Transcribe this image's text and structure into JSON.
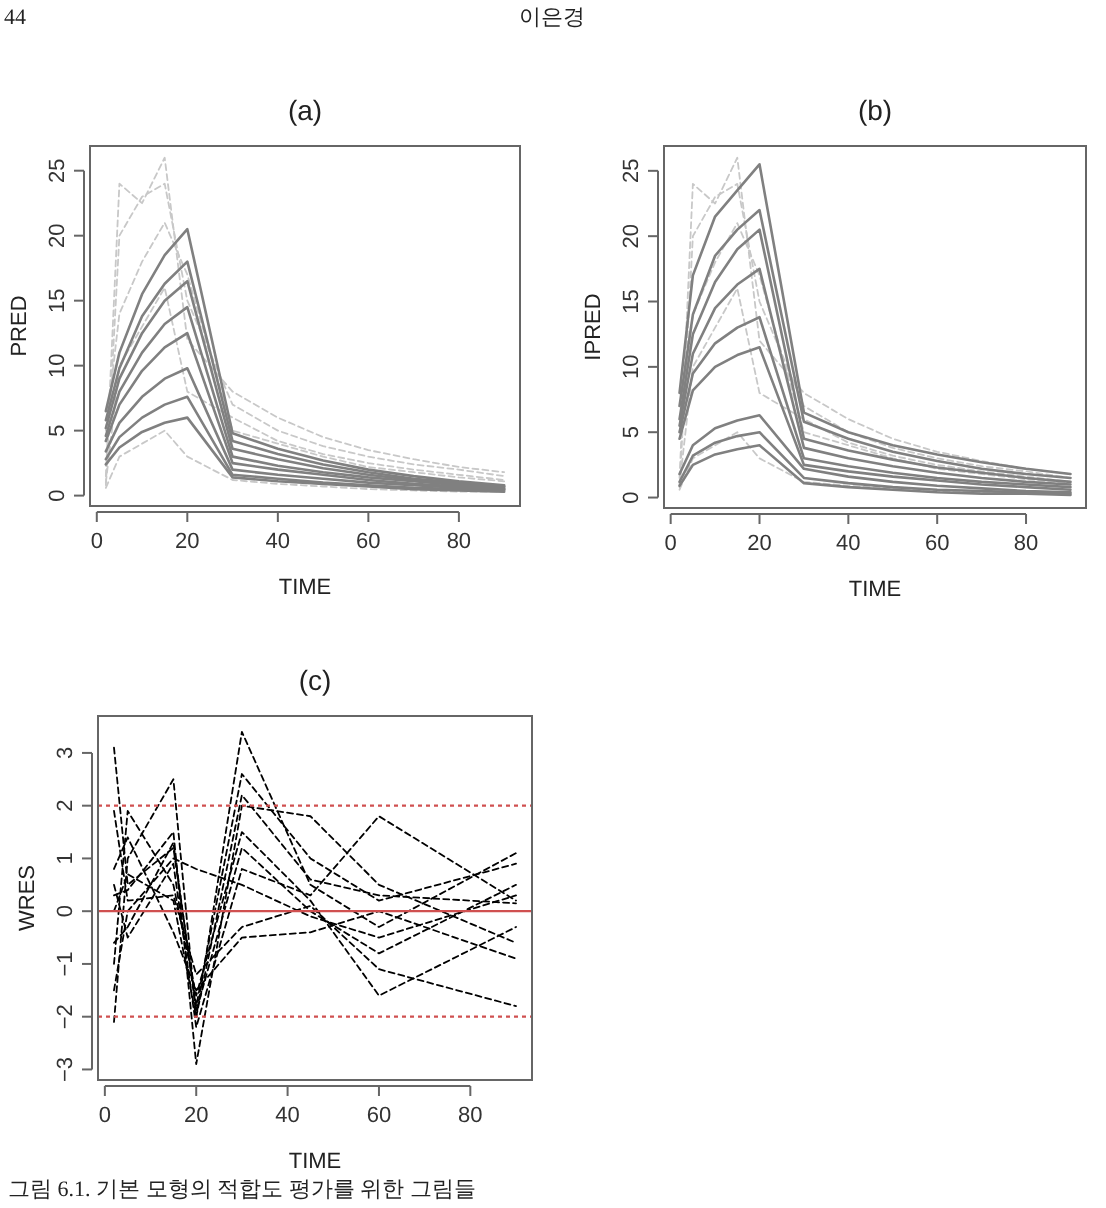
{
  "chart_data": [
    {
      "type": "line",
      "title": "(a)",
      "xlabel": "TIME",
      "ylabel": "PRED",
      "xlim": [
        -1.5,
        93.5
      ],
      "ylim": [
        -0.8,
        26.9
      ],
      "xticks": [
        0,
        20,
        40,
        60,
        80
      ],
      "yticks": [
        0,
        5,
        10,
        15,
        20,
        25
      ],
      "annotations": [
        "44",
        "이은경"
      ],
      "series": [
        {
          "color": "#c8c8c8",
          "line_style": "dashed",
          "x": [
            2,
            5,
            10,
            15,
            20,
            30,
            40,
            50,
            60,
            70,
            80,
            90
          ],
          "values": [
            1.5,
            24,
            22.5,
            26,
            12,
            8,
            6,
            4.5,
            3.5,
            2.8,
            2.2,
            1.8
          ]
        },
        {
          "color": "#c8c8c8",
          "line_style": "dashed",
          "x": [
            2,
            5,
            10,
            15,
            20,
            30,
            40,
            50,
            60,
            70,
            80,
            90
          ],
          "values": [
            0.8,
            20,
            23,
            24,
            15,
            7,
            5,
            3.8,
            3,
            2.4,
            2,
            1.5
          ]
        },
        {
          "color": "#c8c8c8",
          "line_style": "dashed",
          "x": [
            2,
            5,
            10,
            15,
            20,
            30,
            40,
            50,
            60,
            70,
            80,
            90
          ],
          "values": [
            1,
            10,
            13,
            16,
            8,
            6,
            4.2,
            3.2,
            2.5,
            2,
            1.6,
            1.2
          ]
        },
        {
          "color": "#c8c8c8",
          "line_style": "dashed",
          "x": [
            2,
            5,
            10,
            15,
            20,
            30,
            40,
            50,
            60,
            70,
            80,
            90
          ],
          "values": [
            0.6,
            3,
            4,
            5,
            3,
            1.2,
            0.9,
            0.7,
            0.5,
            0.4,
            0.3,
            0.3
          ]
        },
        {
          "color": "#c8c8c8",
          "line_style": "dashed",
          "x": [
            2,
            5,
            10,
            15,
            20,
            30,
            40,
            50,
            60,
            70,
            80,
            90
          ],
          "values": [
            5,
            14,
            18,
            21,
            17,
            5,
            4,
            3,
            2.2,
            1.8,
            1.4,
            1.1
          ]
        },
        {
          "color": "#808080",
          "line_style": "solid",
          "x": [
            2,
            5,
            10,
            15,
            20,
            30,
            40,
            50,
            60,
            70,
            80,
            90
          ],
          "values": [
            6.5,
            11,
            15.5,
            18.5,
            20.5,
            4.8,
            3.6,
            2.7,
            2.0,
            1.5,
            1.1,
            0.8
          ]
        },
        {
          "color": "#808080",
          "line_style": "solid",
          "x": [
            2,
            5,
            10,
            15,
            20,
            30,
            40,
            50,
            60,
            70,
            80,
            90
          ],
          "values": [
            5.8,
            9.8,
            13.8,
            16.3,
            18,
            4.2,
            3.2,
            2.4,
            1.8,
            1.3,
            1.0,
            0.7
          ]
        },
        {
          "color": "#808080",
          "line_style": "solid",
          "x": [
            2,
            5,
            10,
            15,
            20,
            30,
            40,
            50,
            60,
            70,
            80,
            90
          ],
          "values": [
            5.2,
            9,
            12.5,
            15,
            16.5,
            3.6,
            2.8,
            2.1,
            1.6,
            1.2,
            0.9,
            0.7
          ]
        },
        {
          "color": "#808080",
          "line_style": "solid",
          "x": [
            2,
            5,
            10,
            15,
            20,
            30,
            40,
            50,
            60,
            70,
            80,
            90
          ],
          "values": [
            4.6,
            8,
            11,
            13.2,
            14.5,
            3.0,
            2.3,
            1.8,
            1.4,
            1.1,
            0.8,
            0.6
          ]
        },
        {
          "color": "#808080",
          "line_style": "solid",
          "x": [
            2,
            5,
            10,
            15,
            20,
            30,
            40,
            50,
            60,
            70,
            80,
            90
          ],
          "values": [
            4.2,
            7,
            9.6,
            11.4,
            12.5,
            2.5,
            2.0,
            1.6,
            1.2,
            0.9,
            0.7,
            0.5
          ]
        },
        {
          "color": "#808080",
          "line_style": "solid",
          "x": [
            2,
            5,
            10,
            15,
            20,
            30,
            40,
            50,
            60,
            70,
            80,
            90
          ],
          "values": [
            3.4,
            5.6,
            7.6,
            9,
            9.8,
            2.0,
            1.6,
            1.3,
            1.0,
            0.8,
            0.6,
            0.5
          ]
        },
        {
          "color": "#808080",
          "line_style": "solid",
          "x": [
            2,
            5,
            10,
            15,
            20,
            30,
            40,
            50,
            60,
            70,
            80,
            90
          ],
          "values": [
            2.8,
            4.5,
            6,
            7,
            7.6,
            1.6,
            1.3,
            1.0,
            0.8,
            0.6,
            0.5,
            0.4
          ]
        },
        {
          "color": "#808080",
          "line_style": "solid",
          "x": [
            2,
            5,
            10,
            15,
            20,
            30,
            40,
            50,
            60,
            70,
            80,
            90
          ],
          "values": [
            2.4,
            3.7,
            4.9,
            5.6,
            6.0,
            1.4,
            1.1,
            0.9,
            0.7,
            0.5,
            0.4,
            0.3
          ]
        }
      ]
    },
    {
      "type": "line",
      "title": "(b)",
      "xlabel": "TIME",
      "ylabel": "IPRED",
      "xlim": [
        -1.5,
        93.5
      ],
      "ylim": [
        -0.8,
        26.9
      ],
      "xticks": [
        0,
        20,
        40,
        60,
        80
      ],
      "yticks": [
        0,
        5,
        10,
        15,
        20,
        25
      ],
      "series": [
        {
          "color": "#c8c8c8",
          "line_style": "dashed",
          "x": [
            2,
            5,
            10,
            15,
            20,
            30,
            40,
            50,
            60,
            70,
            80,
            90
          ],
          "values": [
            1.5,
            24,
            22.5,
            26,
            12,
            8,
            6,
            4.5,
            3.5,
            2.8,
            2.2,
            1.8
          ]
        },
        {
          "color": "#c8c8c8",
          "line_style": "dashed",
          "x": [
            2,
            5,
            10,
            15,
            20,
            30,
            40,
            50,
            60,
            70,
            80,
            90
          ],
          "values": [
            0.8,
            20,
            23,
            24,
            15,
            7,
            5,
            3.8,
            3,
            2.4,
            2,
            1.5
          ]
        },
        {
          "color": "#c8c8c8",
          "line_style": "dashed",
          "x": [
            2,
            5,
            10,
            15,
            20,
            30,
            40,
            50,
            60,
            70,
            80,
            90
          ],
          "values": [
            1,
            10,
            13,
            16,
            8,
            6,
            4.2,
            3.2,
            2.5,
            2,
            1.6,
            1.2
          ]
        },
        {
          "color": "#c8c8c8",
          "line_style": "dashed",
          "x": [
            2,
            5,
            10,
            15,
            20,
            30,
            40,
            50,
            60,
            70,
            80,
            90
          ],
          "values": [
            0.6,
            3,
            4,
            5,
            3,
            1.2,
            0.9,
            0.7,
            0.5,
            0.4,
            0.3,
            0.3
          ]
        },
        {
          "color": "#c8c8c8",
          "line_style": "dashed",
          "x": [
            2,
            5,
            10,
            15,
            20,
            30,
            40,
            50,
            60,
            70,
            80,
            90
          ],
          "values": [
            5,
            14,
            18,
            21,
            17,
            5,
            4,
            3,
            2.2,
            1.8,
            1.4,
            1.1
          ]
        },
        {
          "color": "#808080",
          "line_style": "solid",
          "x": [
            2,
            5,
            10,
            15,
            20,
            30,
            40,
            50,
            60,
            70,
            80,
            90
          ],
          "values": [
            8,
            17,
            21.5,
            23.5,
            25.5,
            6.5,
            5,
            4,
            3.3,
            2.7,
            2.2,
            1.8
          ]
        },
        {
          "color": "#808080",
          "line_style": "solid",
          "x": [
            2,
            5,
            10,
            15,
            20,
            30,
            40,
            50,
            60,
            70,
            80,
            90
          ],
          "values": [
            7,
            14,
            18.5,
            20.5,
            22,
            5.8,
            4.5,
            3.5,
            2.8,
            2.2,
            1.8,
            1.5
          ]
        },
        {
          "color": "#808080",
          "line_style": "solid",
          "x": [
            2,
            5,
            10,
            15,
            20,
            30,
            40,
            50,
            60,
            70,
            80,
            90
          ],
          "values": [
            6,
            12.5,
            16.5,
            19,
            20.5,
            4.5,
            3.6,
            2.9,
            2.3,
            1.9,
            1.5,
            1.2
          ]
        },
        {
          "color": "#808080",
          "line_style": "solid",
          "x": [
            2,
            5,
            10,
            15,
            20,
            30,
            40,
            50,
            60,
            70,
            80,
            90
          ],
          "values": [
            5.5,
            11,
            14.5,
            16.3,
            17.5,
            3.8,
            3,
            2.4,
            1.9,
            1.5,
            1.2,
            1.0
          ]
        },
        {
          "color": "#808080",
          "line_style": "solid",
          "x": [
            2,
            5,
            10,
            15,
            20,
            30,
            40,
            50,
            60,
            70,
            80,
            90
          ],
          "values": [
            5,
            9.5,
            11.8,
            13,
            13.8,
            3,
            2.4,
            1.9,
            1.5,
            1.2,
            1.0,
            0.8
          ]
        },
        {
          "color": "#808080",
          "line_style": "solid",
          "x": [
            2,
            5,
            10,
            15,
            20,
            30,
            40,
            50,
            60,
            70,
            80,
            90
          ],
          "values": [
            4.5,
            8.2,
            10,
            10.9,
            11.5,
            2.5,
            2,
            1.6,
            1.3,
            1.0,
            0.8,
            0.6
          ]
        },
        {
          "color": "#808080",
          "line_style": "solid",
          "x": [
            2,
            5,
            10,
            15,
            20,
            30,
            40,
            50,
            60,
            70,
            80,
            90
          ],
          "values": [
            1.8,
            4,
            5.3,
            5.9,
            6.3,
            2.2,
            1.6,
            1.2,
            0.9,
            0.7,
            0.5,
            0.4
          ]
        },
        {
          "color": "#808080",
          "line_style": "solid",
          "x": [
            2,
            5,
            10,
            15,
            20,
            30,
            40,
            50,
            60,
            70,
            80,
            90
          ],
          "values": [
            1.2,
            3.2,
            4.2,
            4.7,
            5,
            1.5,
            1.1,
            0.8,
            0.6,
            0.5,
            0.4,
            0.3
          ]
        },
        {
          "color": "#808080",
          "line_style": "solid",
          "x": [
            2,
            5,
            10,
            15,
            20,
            30,
            40,
            50,
            60,
            70,
            80,
            90
          ],
          "values": [
            0.9,
            2.5,
            3.3,
            3.7,
            4,
            1.1,
            0.8,
            0.6,
            0.4,
            0.3,
            0.3,
            0.2
          ]
        }
      ]
    },
    {
      "type": "line",
      "title": "(c)",
      "xlabel": "TIME",
      "ylabel": "WRES",
      "xlim": [
        -1.5,
        93.5
      ],
      "ylim": [
        -3.2,
        3.7
      ],
      "xticks": [
        0,
        20,
        40,
        60,
        80
      ],
      "yticks": [
        {
          "value": -3,
          "label": "−3"
        },
        {
          "value": -2,
          "label": "−2"
        },
        {
          "value": -1,
          "label": "−1"
        },
        0,
        1,
        2,
        3
      ],
      "annotations": [
        "그림 6.1. 기본 모형의 적합도 평가를 위한 그림들"
      ],
      "ref_lines": [
        {
          "axis": "y",
          "value": 0,
          "color": "#d05050",
          "line_style": "solid"
        },
        {
          "axis": "y",
          "value": 2,
          "color": "#d05050",
          "line_style": "dotted"
        },
        {
          "axis": "y",
          "value": -2,
          "color": "#d05050",
          "line_style": "dotted"
        }
      ],
      "series": [
        {
          "color": "#000000",
          "line_style": "dashed",
          "x": [
            2,
            5,
            15,
            20,
            30,
            45,
            60,
            90
          ],
          "values": [
            3.1,
            0.5,
            1.2,
            -1.8,
            2.6,
            1.0,
            0.2,
            0.9
          ]
        },
        {
          "color": "#000000",
          "line_style": "dashed",
          "x": [
            2,
            5,
            15,
            20,
            30,
            45,
            60,
            90
          ],
          "values": [
            -2.1,
            1.0,
            2.5,
            -2.0,
            3.4,
            0.5,
            -0.3,
            1.1
          ]
        },
        {
          "color": "#000000",
          "line_style": "dashed",
          "x": [
            2,
            5,
            15,
            20,
            30,
            45,
            60,
            90
          ],
          "values": [
            0.3,
            0.4,
            1.5,
            -2.9,
            2.0,
            1.8,
            0.5,
            -0.6
          ]
        },
        {
          "color": "#000000",
          "line_style": "dashed",
          "x": [
            2,
            5,
            15,
            20,
            30,
            45,
            60,
            90
          ],
          "values": [
            -1.0,
            1.9,
            0.5,
            -1.6,
            1.5,
            0.2,
            -1.6,
            -0.3
          ]
        },
        {
          "color": "#000000",
          "line_style": "dashed",
          "x": [
            2,
            5,
            15,
            20,
            30,
            45,
            60,
            90
          ],
          "values": [
            0.5,
            -0.5,
            0.9,
            -2.2,
            0.8,
            0.3,
            1.8,
            0.2
          ]
        },
        {
          "color": "#000000",
          "line_style": "dashed",
          "x": [
            2,
            5,
            15,
            20,
            30,
            45,
            60,
            90
          ],
          "values": [
            1.9,
            0.2,
            0.3,
            -1.2,
            -0.3,
            0.1,
            -1.1,
            -1.8
          ]
        },
        {
          "color": "#000000",
          "line_style": "dashed",
          "x": [
            2,
            5,
            15,
            20,
            30,
            45,
            60,
            90
          ],
          "values": [
            -0.6,
            -0.3,
            1.3,
            -1.9,
            1.2,
            0.0,
            -0.8,
            0.5
          ]
        },
        {
          "color": "#000000",
          "line_style": "dashed",
          "x": [
            2,
            5,
            15,
            20,
            30,
            45,
            60,
            90
          ],
          "values": [
            0.8,
            1.4,
            -0.4,
            -1.5,
            -0.5,
            -0.4,
            0.0,
            -0.9
          ]
        },
        {
          "color": "#000000",
          "line_style": "dashed",
          "x": [
            2,
            5,
            15,
            20,
            30,
            45,
            60,
            90
          ],
          "values": [
            0.0,
            0.7,
            0.2,
            -2.0,
            2.2,
            0.6,
            0.3,
            0.15
          ]
        },
        {
          "color": "#000000",
          "line_style": "dashed",
          "x": [
            2,
            5,
            15,
            20,
            30,
            45,
            60,
            90
          ],
          "values": [
            -1.5,
            0.0,
            1.0,
            0.8,
            0.5,
            -0.1,
            -0.5,
            0.3
          ]
        }
      ]
    }
  ]
}
